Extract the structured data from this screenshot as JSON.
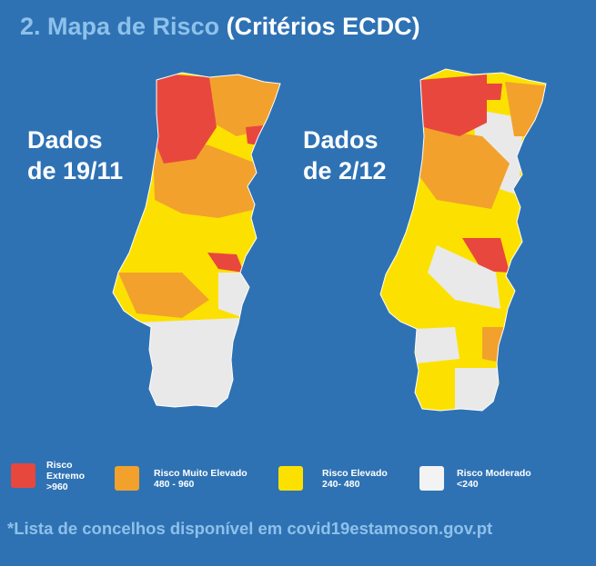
{
  "header": {
    "title_part1": "2. Mapa de Risco",
    "title_part2": "(Critérios ECDC)"
  },
  "maps": [
    {
      "label_line1": "Dados",
      "label_line2": "de 19/11",
      "dominant_risk": "muito-elevado"
    },
    {
      "label_line1": "Dados",
      "label_line2": "de 2/12",
      "dominant_risk": "elevado"
    }
  ],
  "legend": {
    "items": [
      {
        "line1": "Risco",
        "line2": "Extremo",
        "line3": ">960",
        "color": "#e8473e"
      },
      {
        "line1": "Risco Muito  Elevado",
        "line2": "480 - 960",
        "color": "#f2a12d"
      },
      {
        "line1": "Risco  Elevado",
        "line2": "240- 480",
        "color": "#fce100"
      },
      {
        "line1": "Risco  Moderado",
        "line2": "<240",
        "color": "#f3f3f3"
      }
    ]
  },
  "footer": {
    "note": "*Lista de concelhos disponível em covid19estamoson.gov.pt"
  },
  "colors": {
    "background": "#2e72b4",
    "extremo": "#e8473e",
    "muito_elevado": "#f2a12d",
    "elevado": "#fce100",
    "moderado": "#e9e9e9"
  }
}
